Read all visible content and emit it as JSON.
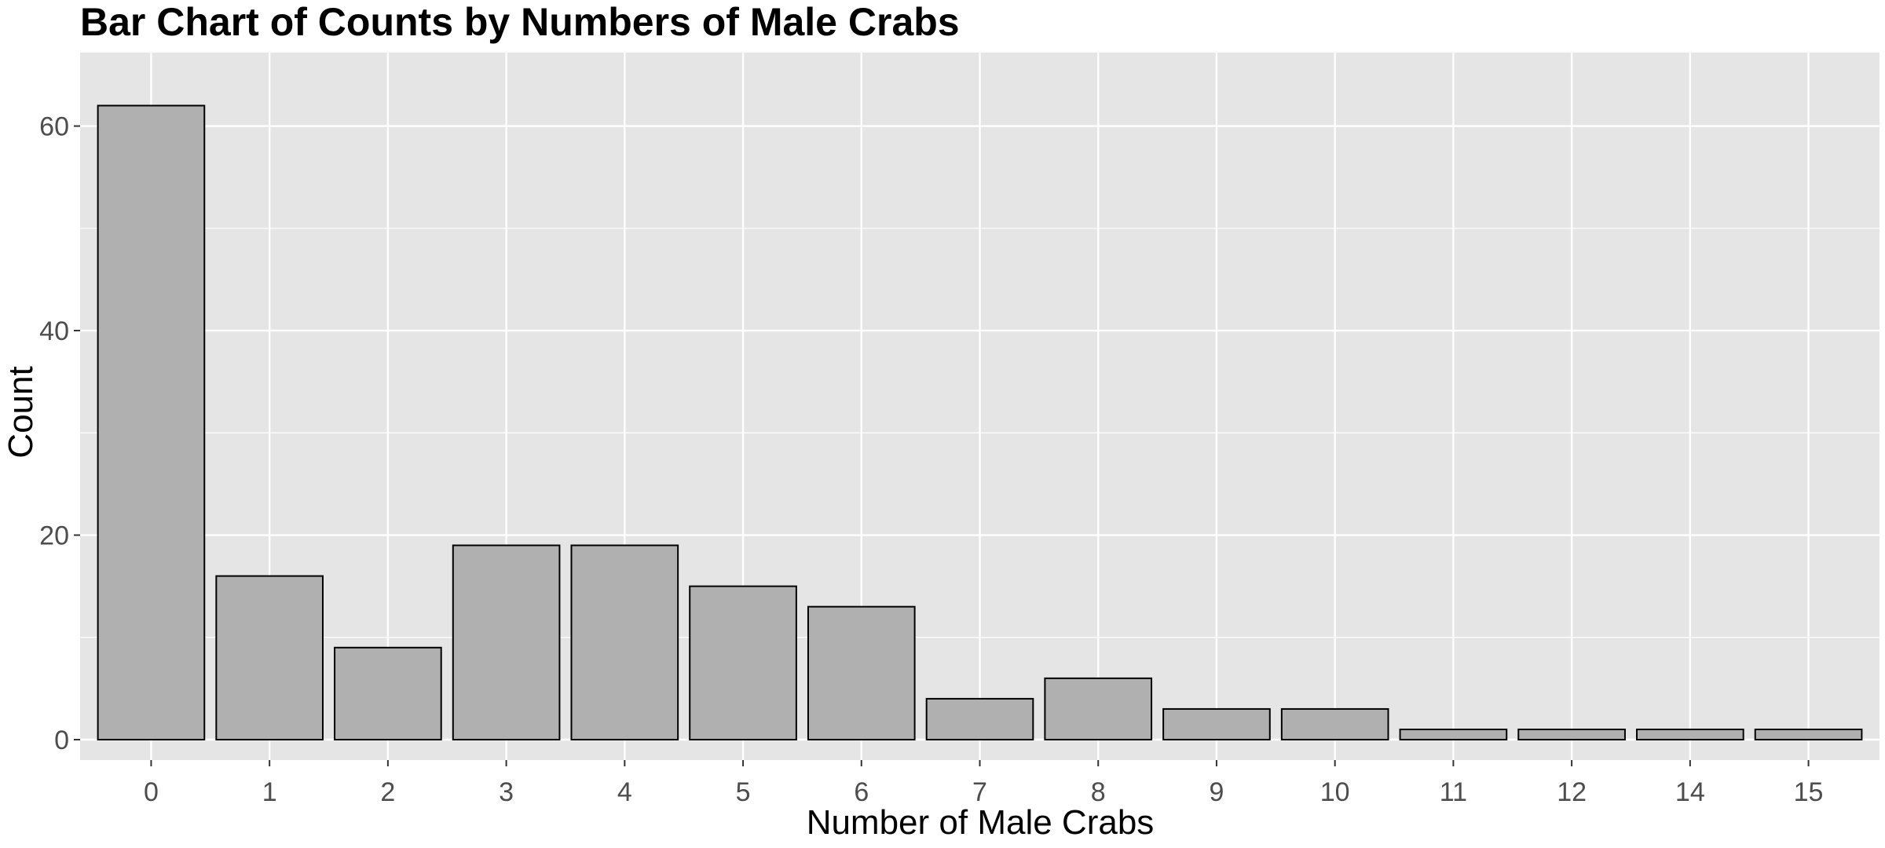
{
  "chart_data": {
    "type": "bar",
    "title": "Bar Chart of Counts by Numbers of Male Crabs",
    "xlabel": "Number of Male Crabs",
    "ylabel": "Count",
    "categories": [
      "0",
      "1",
      "2",
      "3",
      "4",
      "5",
      "6",
      "7",
      "8",
      "9",
      "10",
      "11",
      "12",
      "14",
      "15"
    ],
    "values": [
      62,
      16,
      9,
      19,
      19,
      15,
      13,
      4,
      6,
      3,
      3,
      1,
      1,
      1,
      1
    ],
    "ylim": [
      0,
      65
    ],
    "yticks": [
      0,
      20,
      40,
      60
    ],
    "grid": true,
    "legend": "none",
    "colors": {
      "panel_background": "#e5e5e5",
      "grid_line": "#ffffff",
      "bar_fill": "#b0b0b0",
      "bar_outline": "#000000",
      "tick_text": "#4d4d4d"
    }
  }
}
